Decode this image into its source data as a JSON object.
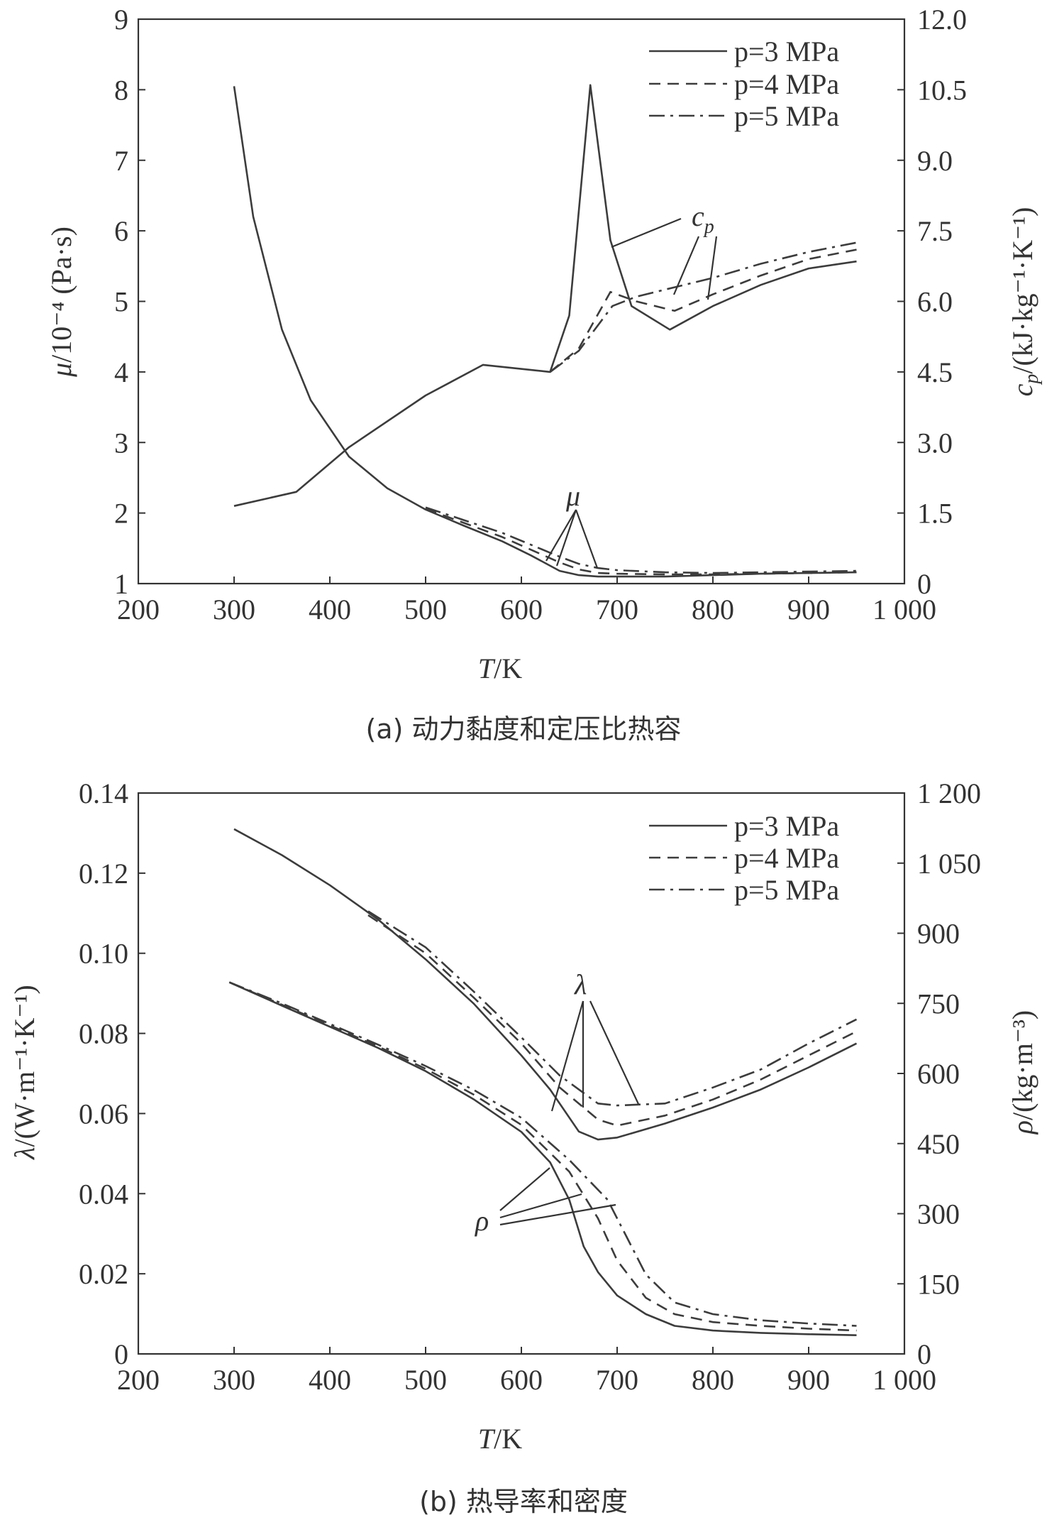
{
  "chart_data": [
    {
      "type": "line",
      "caption": "(a) 动力黏度和定压比热容",
      "xlabel": "T/K",
      "x_ticks": [
        "200",
        "300",
        "400",
        "500",
        "600",
        "700",
        "800",
        "900",
        "1 000"
      ],
      "xlim": [
        200,
        1000
      ],
      "ylabel_left": "μ/10⁻⁴ (Pa·s)",
      "ylim_left": [
        1,
        9
      ],
      "y_ticks_left": [
        "1",
        "2",
        "3",
        "4",
        "5",
        "6",
        "7",
        "8",
        "9"
      ],
      "ylabel_right": "cp/(kJ·kg⁻¹·K⁻¹)",
      "ylim_right": [
        0,
        12
      ],
      "y_ticks_right": [
        "0",
        "1.5",
        "3.0",
        "4.5",
        "6.0",
        "7.5",
        "9.0",
        "10.5",
        "12.0"
      ],
      "legend": [
        "p=3 MPa",
        "p=4 MPa",
        "p=5 MPa"
      ],
      "legend_position": "top-right",
      "annotations": [
        "c_p",
        "μ"
      ],
      "series": [
        {
          "name": "p=3 MPa",
          "quantity": "μ",
          "axis": "left",
          "style": "solid",
          "x": [
            300,
            320,
            350,
            380,
            420,
            460,
            500,
            540,
            580,
            610,
            640,
            660,
            680,
            700,
            750,
            800,
            850,
            900,
            950
          ],
          "y": [
            8.05,
            6.2,
            4.6,
            3.6,
            2.8,
            2.35,
            2.05,
            1.82,
            1.6,
            1.4,
            1.18,
            1.12,
            1.1,
            1.1,
            1.1,
            1.12,
            1.14,
            1.15,
            1.16
          ]
        },
        {
          "name": "p=4 MPa",
          "quantity": "μ",
          "axis": "left",
          "style": "dashed",
          "x": [
            500,
            540,
            580,
            610,
            640,
            660,
            680,
            700,
            750,
            800,
            850,
            900,
            950
          ],
          "y": [
            2.06,
            1.86,
            1.66,
            1.48,
            1.3,
            1.2,
            1.15,
            1.14,
            1.13,
            1.13,
            1.14,
            1.15,
            1.16
          ]
        },
        {
          "name": "p=5 MPa",
          "quantity": "μ",
          "axis": "left",
          "style": "dashdot",
          "x": [
            500,
            540,
            580,
            610,
            640,
            660,
            680,
            700,
            750,
            800,
            850,
            900,
            950
          ],
          "y": [
            2.08,
            1.9,
            1.72,
            1.55,
            1.38,
            1.28,
            1.22,
            1.19,
            1.16,
            1.15,
            1.16,
            1.17,
            1.18
          ]
        },
        {
          "name": "p=3 MPa",
          "quantity": "cp",
          "axis": "right",
          "style": "solid",
          "x": [
            300,
            365,
            420,
            500,
            560,
            630,
            650,
            672,
            693,
            715,
            755,
            800,
            850,
            900,
            950
          ],
          "y": [
            1.65,
            1.95,
            2.9,
            4.0,
            4.65,
            4.5,
            5.7,
            10.6,
            7.3,
            5.9,
            5.4,
            5.9,
            6.35,
            6.7,
            6.85
          ]
        },
        {
          "name": "p=4 MPa",
          "quantity": "cp",
          "axis": "right",
          "style": "dashed",
          "x": [
            630,
            660,
            693,
            720,
            760,
            800,
            850,
            900,
            950
          ],
          "y": [
            4.5,
            5.0,
            6.2,
            6.0,
            5.8,
            6.15,
            6.55,
            6.9,
            7.1
          ]
        },
        {
          "name": "p=5 MPa",
          "quantity": "cp",
          "axis": "right",
          "style": "dashdot",
          "x": [
            630,
            660,
            695,
            720,
            760,
            800,
            850,
            900,
            950
          ],
          "y": [
            4.5,
            4.95,
            5.9,
            6.1,
            6.3,
            6.5,
            6.8,
            7.05,
            7.25
          ]
        }
      ]
    },
    {
      "type": "line",
      "caption": "(b) 热导率和密度",
      "xlabel": "T/K",
      "x_ticks": [
        "200",
        "300",
        "400",
        "500",
        "600",
        "700",
        "800",
        "900",
        "1 000"
      ],
      "xlim": [
        200,
        1000
      ],
      "ylabel_left": "λ/(W·m⁻¹·K⁻¹)",
      "ylim_left": [
        0,
        0.14
      ],
      "y_ticks_left": [
        "0",
        "0.02",
        "0.04",
        "0.06",
        "0.08",
        "0.10",
        "0.12",
        "0.14"
      ],
      "ylabel_right": "ρ/(kg·m⁻³)",
      "ylim_right": [
        0,
        1200
      ],
      "y_ticks_right": [
        "0",
        "150",
        "300",
        "450",
        "600",
        "750",
        "900",
        "1 050",
        "1 200"
      ],
      "legend": [
        "p=3 MPa",
        "p=4 MPa",
        "p=5 MPa"
      ],
      "legend_position": "top-right",
      "annotations": [
        "λ",
        "ρ"
      ],
      "series": [
        {
          "name": "p=3 MPa",
          "quantity": "λ",
          "axis": "left",
          "style": "solid",
          "x": [
            300,
            350,
            400,
            450,
            500,
            550,
            600,
            630,
            660,
            680,
            700,
            750,
            800,
            850,
            900,
            950
          ],
          "y": [
            0.131,
            0.1245,
            0.117,
            0.1085,
            0.0985,
            0.0875,
            0.0745,
            0.066,
            0.0555,
            0.0535,
            0.054,
            0.0575,
            0.0615,
            0.066,
            0.0715,
            0.0775
          ]
        },
        {
          "name": "p=4 MPa",
          "quantity": "λ",
          "axis": "left",
          "style": "dashed",
          "x": [
            440,
            500,
            550,
            600,
            640,
            680,
            700,
            750,
            800,
            850,
            900,
            950
          ],
          "y": [
            0.1095,
            0.1,
            0.089,
            0.0775,
            0.0665,
            0.0585,
            0.057,
            0.0595,
            0.0635,
            0.0685,
            0.0745,
            0.0805
          ]
        },
        {
          "name": "p=5 MPa",
          "quantity": "λ",
          "axis": "left",
          "style": "dashdot",
          "x": [
            440,
            500,
            550,
            600,
            640,
            680,
            700,
            750,
            800,
            850,
            900,
            950
          ],
          "y": [
            0.1105,
            0.1015,
            0.0905,
            0.079,
            0.0695,
            0.0625,
            0.062,
            0.0625,
            0.0665,
            0.071,
            0.0775,
            0.0835
          ]
        },
        {
          "name": "p=3 MPa",
          "quantity": "ρ",
          "axis": "right",
          "style": "solid",
          "x": [
            295,
            350,
            400,
            450,
            500,
            550,
            600,
            630,
            650,
            665,
            680,
            700,
            730,
            760,
            800,
            850,
            900,
            950
          ],
          "y": [
            795,
            745,
            700,
            655,
            605,
            545,
            475,
            410,
            330,
            230,
            175,
            125,
            85,
            60,
            50,
            45,
            42,
            40
          ]
        },
        {
          "name": "p=4 MPa",
          "quantity": "ρ",
          "axis": "right",
          "style": "dashed",
          "x": [
            295,
            350,
            400,
            450,
            500,
            550,
            600,
            650,
            680,
            700,
            730,
            760,
            800,
            850,
            900,
            950
          ],
          "y": [
            795,
            747,
            703,
            658,
            610,
            555,
            490,
            390,
            290,
            200,
            120,
            85,
            68,
            60,
            54,
            50
          ]
        },
        {
          "name": "p=5 MPa",
          "quantity": "ρ",
          "axis": "right",
          "style": "dashdot",
          "x": [
            295,
            350,
            400,
            450,
            500,
            550,
            600,
            650,
            690,
            710,
            730,
            760,
            800,
            850,
            900,
            950
          ],
          "y": [
            795,
            750,
            706,
            662,
            616,
            565,
            505,
            415,
            330,
            250,
            170,
            110,
            85,
            72,
            65,
            60
          ]
        }
      ]
    }
  ]
}
